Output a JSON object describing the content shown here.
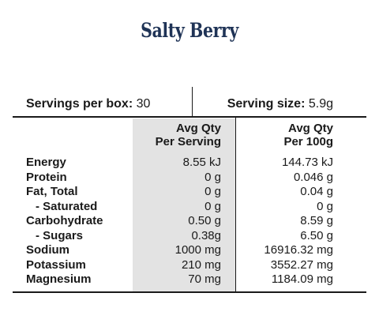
{
  "title": "Salty Berry",
  "servings": {
    "per_box_label": "Servings per box:",
    "per_box_value": "30",
    "size_label": "Serving size:",
    "size_value": "5.9g"
  },
  "columns": {
    "per_serving": [
      "Avg Qty",
      "Per Serving"
    ],
    "per_100g": [
      "Avg Qty",
      "Per 100g"
    ]
  },
  "rows": [
    {
      "name": "Energy",
      "per_serving": "8.55 kJ",
      "per_100g": "144.73 kJ"
    },
    {
      "name": "Protein",
      "per_serving": "0 g",
      "per_100g": "0.046 g"
    },
    {
      "name": "Fat, Total",
      "per_serving": "0 g",
      "per_100g": "0.04 g"
    },
    {
      "name": "- Saturated",
      "per_serving": "0 g",
      "per_100g": "0 g"
    },
    {
      "name": "Carbohydrate",
      "per_serving": "0.50 g",
      "per_100g": "8.59 g"
    },
    {
      "name": "- Sugars",
      "per_serving": "0.38g",
      "per_100g": "6.50 g"
    },
    {
      "name": "Sodium",
      "per_serving": "1000 mg",
      "per_100g": "16916.32 mg"
    },
    {
      "name": "Potassium",
      "per_serving": "210 mg",
      "per_100g": "3552.27 mg"
    },
    {
      "name": "Magnesium",
      "per_serving": "70 mg",
      "per_100g": "1184.09 mg"
    }
  ]
}
